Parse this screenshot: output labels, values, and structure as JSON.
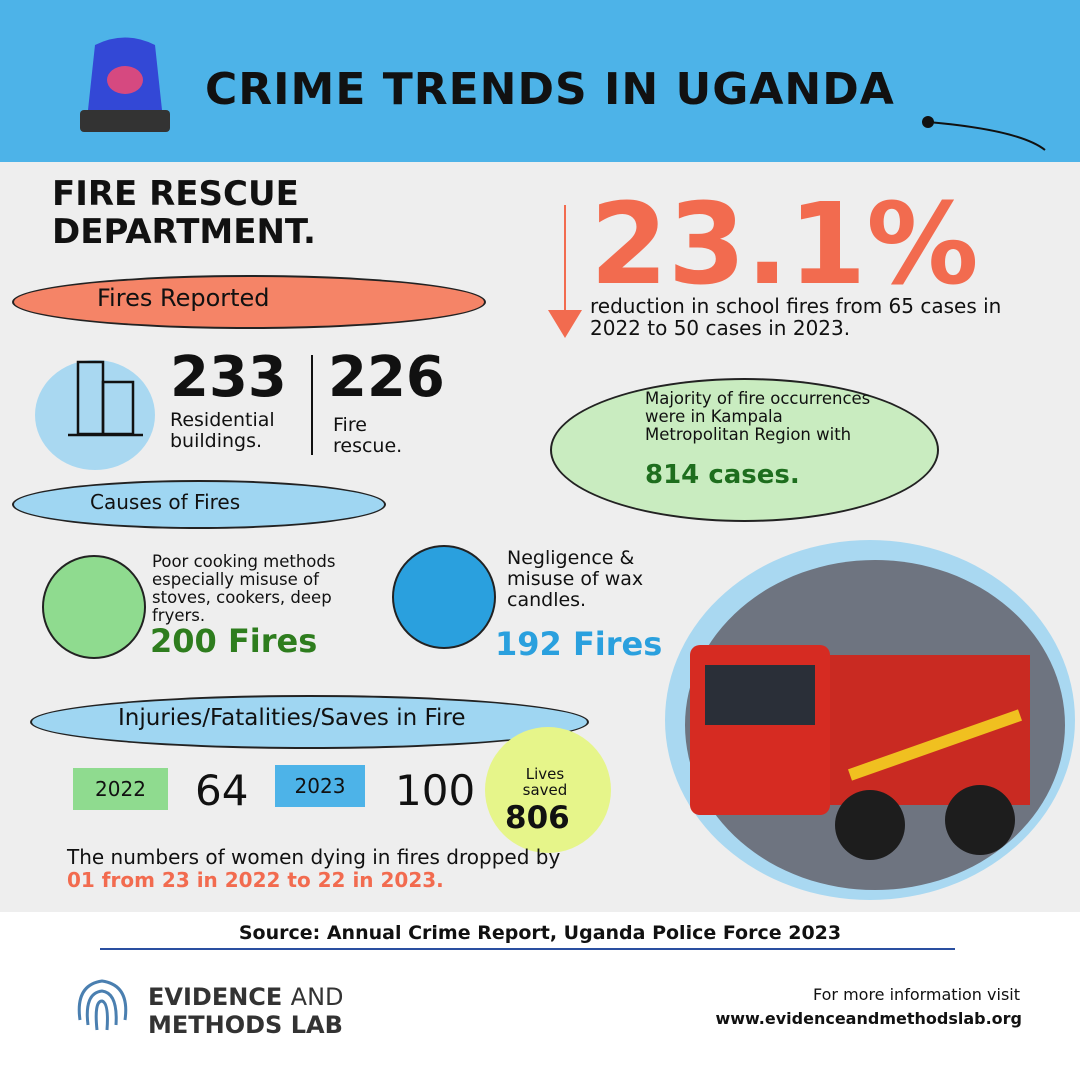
{
  "header": {
    "title": "CRIME TRENDS IN UGANDA"
  },
  "section_title": "FIRE RESCUE DEPARTMENT.",
  "highlight_stat": {
    "value": "23.1%",
    "text": "reduction in school fires from 65 cases in 2022 to 50 cases in 2023."
  },
  "fires_reported": {
    "heading": "Fires Reported",
    "items": [
      {
        "value": "233",
        "label": "Residential buildings."
      },
      {
        "value": "226",
        "label": "Fire rescue."
      }
    ]
  },
  "region": {
    "text": "Majority of fire occurrences were in Kampala Metropolitan Region with",
    "value": "814 cases."
  },
  "causes": {
    "heading": "Causes of Fires",
    "items": [
      {
        "text": "Poor cooking methods especially misuse of stoves, cookers, deep fryers.",
        "value": "200 Fires"
      },
      {
        "text": "Negligence & misuse of wax candles.",
        "value": "192 Fires"
      }
    ]
  },
  "injuries": {
    "heading": "Injuries/Fatalities/Saves in Fire",
    "years": [
      {
        "year": "2022",
        "value": "64"
      },
      {
        "year": "2023",
        "value": "100"
      }
    ]
  },
  "lives_saved": {
    "label": "Lives saved",
    "value": "806"
  },
  "women": {
    "text": "The numbers of women dying in fires dropped by",
    "highlight": "01 from 23 in 2022 to 22 in 2023."
  },
  "source": "Source: Annual Crime Report, Uganda Police Force 2023",
  "footer": {
    "logo_line1": "EVIDENCE",
    "logo_and": "AND",
    "logo_line2": "METHODS LAB",
    "info": "For more information visit",
    "url": "www.evidenceandmethodslab.org"
  }
}
